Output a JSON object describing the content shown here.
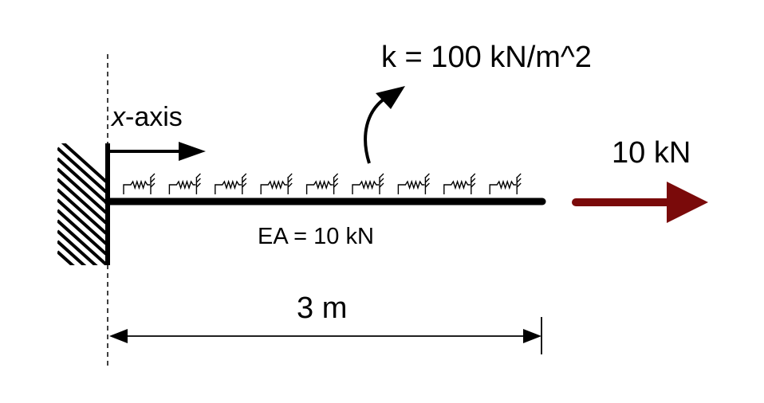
{
  "labels": {
    "x_axis_var": "x",
    "x_axis_rest": "-axis",
    "spring_stiffness": "k = 100 kN/m^2",
    "axial_stiffness": "EA = 10 kN",
    "applied_force": "10 kN",
    "bar_length": "3 m"
  },
  "colors": {
    "line": "#000000",
    "force_arrow": "#7a0a0a"
  },
  "spring_count": 9
}
